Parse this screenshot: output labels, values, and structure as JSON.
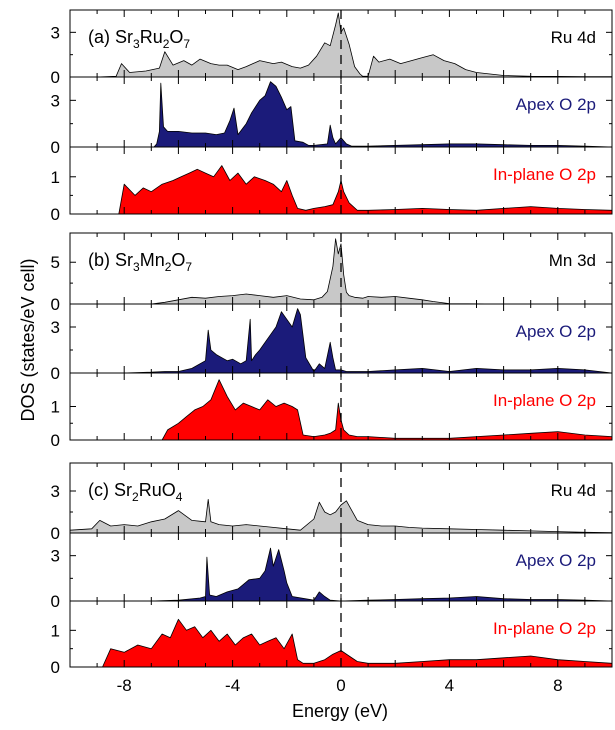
{
  "chart_data": {
    "type": "area",
    "xlabel": "Energy (eV)",
    "ylabel": "DOS  (states/eV cell)",
    "xlim": [
      -10,
      10
    ],
    "xticks": [
      -8,
      -4,
      0,
      4,
      8
    ],
    "fermi_level": 0,
    "colors": {
      "metal": "#c8c8c8",
      "apex": "#1b1b7a",
      "inplane": "#ff0000",
      "apex_label": "#1b1b7a",
      "inplane_label": "#ff0000",
      "line": "#000000"
    },
    "groups": [
      {
        "label": "(a)",
        "compound": {
          "pre": "Sr",
          "s1": "3",
          "mid": "Ru",
          "s2": "2",
          "post": "O",
          "s3": "7"
        },
        "panels": [
          {
            "name": "Ru 4d",
            "color_key": "metal",
            "ylim": [
              0,
              4.5
            ],
            "yticks": [
              0,
              3
            ],
            "x": [
              -9,
              -8.3,
              -8.1,
              -7.8,
              -7.2,
              -6.7,
              -6.5,
              -6.2,
              -5.8,
              -5.5,
              -5.2,
              -4.8,
              -4.5,
              -4.2,
              -3.8,
              -3.5,
              -3.0,
              -2.5,
              -2.2,
              -1.8,
              -1.5,
              -1.2,
              -0.9,
              -0.6,
              -0.4,
              -0.2,
              -0.1,
              0,
              0.1,
              0.3,
              0.5,
              0.7,
              0.8,
              1.0,
              1.2,
              1.4,
              1.8,
              2.2,
              2.6,
              3.0,
              3.4,
              3.8,
              4.2,
              4.6,
              5.0,
              5.5,
              6.0,
              7,
              8,
              9,
              10
            ],
            "y": [
              0,
              0.05,
              0.9,
              0.3,
              0.4,
              0.6,
              1.7,
              0.8,
              1.1,
              0.8,
              1.2,
              0.9,
              0.8,
              0.8,
              0.5,
              0.7,
              1.1,
              0.9,
              1.0,
              0.7,
              0.6,
              0.8,
              1.4,
              2.3,
              2.1,
              3.5,
              4.3,
              3.0,
              3.3,
              2.2,
              0.7,
              0.2,
              0.05,
              0.05,
              1.4,
              1.0,
              1.2,
              0.9,
              1.1,
              1.3,
              1.5,
              1.1,
              0.9,
              0.5,
              0.3,
              0.2,
              0.1,
              0.05,
              0.04,
              0.03,
              0.02
            ]
          },
          {
            "name": "Apex O 2p",
            "color_key": "apex",
            "ylim": [
              0,
              4.5
            ],
            "yticks": [
              0,
              3
            ],
            "x": [
              -9,
              -6.9,
              -6.8,
              -6.7,
              -6.65,
              -6.55,
              -6.4,
              -6.0,
              -5.5,
              -5.0,
              -4.6,
              -4.3,
              -4.1,
              -3.95,
              -3.8,
              -3.5,
              -3.3,
              -3.0,
              -2.8,
              -2.6,
              -2.4,
              -2.2,
              -2.0,
              -1.85,
              -1.7,
              -1.4,
              -1.2,
              -1.0,
              -0.5,
              -0.4,
              -0.3,
              -0.2,
              0,
              0.2,
              0.4,
              1,
              2,
              3,
              4,
              5,
              6,
              7,
              8,
              9,
              10
            ],
            "y": [
              0,
              0,
              0.2,
              1.0,
              4.1,
              1.3,
              1.0,
              1.0,
              0.9,
              0.9,
              0.8,
              0.9,
              1.7,
              2.5,
              0.8,
              1.5,
              2.2,
              3.0,
              3.3,
              4.2,
              3.9,
              3.2,
              2.4,
              2.6,
              0.4,
              0.3,
              0.1,
              0.1,
              0.2,
              1.4,
              0.6,
              0.2,
              0.6,
              0.2,
              0.05,
              0.05,
              0.1,
              0.15,
              0.2,
              0.2,
              0.15,
              0.1,
              0.1,
              0.05,
              0
            ]
          },
          {
            "name": "In-plane O 2p",
            "color_key": "inplane",
            "ylim": [
              0,
              1.8
            ],
            "yticks": [
              0,
              1
            ],
            "x": [
              -9,
              -8.2,
              -8.0,
              -7.6,
              -7.3,
              -7.0,
              -6.6,
              -6.2,
              -5.9,
              -5.6,
              -5.3,
              -5.0,
              -4.7,
              -4.4,
              -4.1,
              -3.8,
              -3.5,
              -3.2,
              -2.8,
              -2.5,
              -2.2,
              -2.0,
              -1.8,
              -1.6,
              -1.3,
              -1.0,
              -0.6,
              -0.3,
              -0.1,
              0,
              0.1,
              0.3,
              0.6,
              1.0,
              2,
              3,
              4,
              5,
              6,
              7,
              8,
              9,
              10
            ],
            "y": [
              0,
              0,
              0.8,
              0.5,
              0.7,
              0.6,
              0.8,
              0.9,
              1.0,
              1.1,
              1.2,
              1.1,
              1.0,
              1.3,
              0.9,
              1.1,
              0.8,
              1.0,
              0.9,
              0.8,
              0.6,
              0.9,
              0.5,
              0.15,
              0.1,
              0.15,
              0.2,
              0.25,
              0.6,
              0.9,
              0.6,
              0.3,
              0.1,
              0.1,
              0.12,
              0.15,
              0.12,
              0.1,
              0.15,
              0.2,
              0.15,
              0.12,
              0.1
            ]
          }
        ]
      },
      {
        "label": "(b)",
        "compound": {
          "pre": "Sr",
          "s1": "3",
          "mid": "Mn",
          "s2": "2",
          "post": "O",
          "s3": "7"
        },
        "panels": [
          {
            "name": "Mn 3d",
            "color_key": "metal",
            "ylim": [
              0,
              8.5
            ],
            "yticks": [
              0,
              5
            ],
            "x": [
              -9,
              -7,
              -6.5,
              -6,
              -5.5,
              -5,
              -4.5,
              -4,
              -3.5,
              -3,
              -2.5,
              -2,
              -1.5,
              -1,
              -0.7,
              -0.5,
              -0.3,
              -0.2,
              -0.1,
              0,
              0.1,
              0.2,
              0.3,
              0.5,
              0.8,
              1,
              1.5,
              2,
              2.5,
              3,
              3.4,
              4,
              6,
              8,
              10
            ],
            "y": [
              0,
              0,
              0.2,
              0.5,
              0.8,
              0.7,
              0.9,
              1.0,
              1.2,
              1.0,
              0.8,
              1.0,
              0.6,
              0.5,
              0.8,
              1.5,
              4.5,
              7.8,
              6.0,
              7.2,
              3.5,
              1.4,
              1.0,
              0.8,
              0.7,
              0.9,
              0.8,
              0.9,
              0.7,
              0.5,
              0.3,
              0.05,
              0,
              0,
              0
            ]
          },
          {
            "name": "Apex O 2p",
            "color_key": "apex",
            "ylim": [
              0,
              4.5
            ],
            "yticks": [
              0,
              3
            ],
            "x": [
              -9,
              -8,
              -7,
              -6.5,
              -6,
              -5.5,
              -5.0,
              -4.9,
              -4.8,
              -4.6,
              -4.4,
              -4.2,
              -4.0,
              -3.7,
              -3.5,
              -3.35,
              -3.3,
              -3.15,
              -3.0,
              -2.8,
              -2.6,
              -2.4,
              -2.2,
              -2.0,
              -1.8,
              -1.6,
              -1.5,
              -1.3,
              -1.0,
              -0.8,
              -0.6,
              -0.4,
              -0.3,
              -0.2,
              0,
              0.2,
              1,
              2,
              3,
              4,
              5,
              6,
              7,
              8,
              9,
              10
            ],
            "y": [
              0,
              0,
              0.05,
              0.1,
              0.1,
              0.3,
              0.8,
              2.8,
              1.5,
              1.2,
              1.0,
              0.8,
              0.9,
              0.6,
              0.8,
              3.5,
              0.8,
              1.2,
              1.5,
              2.0,
              2.5,
              3.0,
              4.0,
              3.5,
              3.0,
              4.2,
              3.8,
              1.0,
              0.1,
              0.6,
              0.3,
              2.0,
              1.0,
              0.2,
              0.2,
              0.1,
              0.1,
              0.2,
              0.3,
              0.1,
              0.3,
              0.2,
              0.2,
              0.3,
              0.2,
              0
            ]
          },
          {
            "name": "In-plane O 2p",
            "color_key": "inplane",
            "ylim": [
              0,
              2.0
            ],
            "yticks": [
              0,
              1
            ],
            "x": [
              -9,
              -6.6,
              -6.4,
              -6.0,
              -5.7,
              -5.4,
              -5.1,
              -4.8,
              -4.5,
              -4.2,
              -3.9,
              -3.6,
              -3.3,
              -3.0,
              -2.7,
              -2.4,
              -2.1,
              -1.8,
              -1.6,
              -1.4,
              -1.0,
              -0.6,
              -0.4,
              -0.2,
              -0.1,
              0,
              0.1,
              0.3,
              0.6,
              1.0,
              2,
              3,
              4,
              5,
              6,
              7,
              8,
              9,
              10
            ],
            "y": [
              0,
              0,
              0.3,
              0.5,
              0.7,
              0.9,
              1.0,
              1.2,
              1.8,
              1.3,
              0.9,
              1.1,
              1.0,
              0.9,
              1.2,
              1.0,
              1.1,
              1.0,
              0.9,
              0.15,
              0.1,
              0.15,
              0.2,
              0.3,
              1.1,
              0.6,
              0.3,
              0.15,
              0.1,
              0.1,
              0.05,
              0.05,
              0.05,
              0.1,
              0.15,
              0.2,
              0.25,
              0.15,
              0.1
            ]
          }
        ]
      },
      {
        "label": "(c)",
        "compound": {
          "pre": "Sr",
          "s1": "2",
          "mid": "RuO",
          "s2": "4",
          "post": "",
          "s3": ""
        },
        "panels": [
          {
            "name": "Ru 4d",
            "color_key": "metal",
            "ylim": [
              0,
              5.0
            ],
            "yticks": [
              0,
              3
            ],
            "x": [
              -10,
              -9.2,
              -8.9,
              -8.5,
              -8.0,
              -7.5,
              -7.0,
              -6.5,
              -6.0,
              -5.5,
              -5.0,
              -4.9,
              -4.8,
              -4.5,
              -4.0,
              -3.5,
              -3.0,
              -2.5,
              -2.0,
              -1.5,
              -1.0,
              -0.8,
              -0.6,
              -0.4,
              -0.2,
              0,
              0.2,
              0.4,
              0.6,
              1.0,
              1.5,
              2,
              2.5,
              3,
              4,
              5,
              6,
              7,
              8,
              9,
              10
            ],
            "y": [
              0.2,
              0.3,
              0.9,
              0.5,
              0.6,
              0.5,
              0.8,
              1.0,
              1.6,
              0.9,
              0.8,
              2.4,
              0.8,
              0.6,
              0.5,
              0.6,
              0.5,
              0.4,
              0.3,
              0.2,
              1.0,
              2.2,
              1.5,
              1.3,
              1.5,
              2.0,
              2.3,
              1.6,
              0.9,
              0.6,
              0.5,
              0.5,
              0.4,
              0.35,
              0.3,
              0.25,
              0.2,
              0.15,
              0.1,
              0.05,
              0.02
            ]
          },
          {
            "name": "Apex O 2p",
            "color_key": "apex",
            "ylim": [
              0,
              4.5
            ],
            "yticks": [
              0,
              3
            ],
            "x": [
              -9,
              -7,
              -6,
              -5.2,
              -5.0,
              -4.95,
              -4.85,
              -4.6,
              -4.2,
              -3.8,
              -3.4,
              -3.0,
              -2.8,
              -2.6,
              -2.5,
              -2.3,
              -2.1,
              -2.0,
              -1.8,
              -1.0,
              -0.8,
              -0.6,
              -0.4,
              0,
              1,
              2,
              3,
              4,
              5,
              6,
              7,
              8,
              9,
              10
            ],
            "y": [
              0,
              0,
              0.05,
              0.2,
              0.3,
              2.9,
              0.4,
              0.3,
              0.6,
              0.8,
              1.4,
              1.5,
              2.0,
              3.5,
              2.3,
              3.4,
              2.0,
              1.2,
              0.3,
              0.05,
              0.6,
              0.3,
              0.05,
              0,
              0.05,
              0.1,
              0.15,
              0.2,
              0.3,
              0.15,
              0.1,
              0.1,
              0.05,
              0
            ]
          },
          {
            "name": "In-plane O 2p",
            "color_key": "inplane",
            "ylim": [
              0,
              1.8
            ],
            "yticks": [
              0,
              1
            ],
            "x": [
              -9,
              -8.8,
              -8.5,
              -8.0,
              -7.5,
              -7.0,
              -6.6,
              -6.3,
              -6.0,
              -5.7,
              -5.4,
              -5.1,
              -4.8,
              -4.5,
              -4.2,
              -3.9,
              -3.6,
              -3.3,
              -3.0,
              -2.7,
              -2.4,
              -2.1,
              -1.8,
              -1.6,
              -1.4,
              -1.0,
              -0.6,
              -0.3,
              0,
              0.3,
              0.6,
              1.0,
              2,
              3,
              4,
              5,
              6,
              7,
              8,
              9,
              10
            ],
            "y": [
              0,
              0,
              0.5,
              0.4,
              0.6,
              0.5,
              0.9,
              0.8,
              1.3,
              1.0,
              1.1,
              0.8,
              1.0,
              0.7,
              0.9,
              0.6,
              0.8,
              0.9,
              0.6,
              0.7,
              0.8,
              0.5,
              0.9,
              0.2,
              0.1,
              0.1,
              0.2,
              0.35,
              0.45,
              0.3,
              0.15,
              0.1,
              0.1,
              0.15,
              0.2,
              0.2,
              0.25,
              0.3,
              0.2,
              0.15,
              0.1
            ]
          }
        ]
      }
    ]
  }
}
